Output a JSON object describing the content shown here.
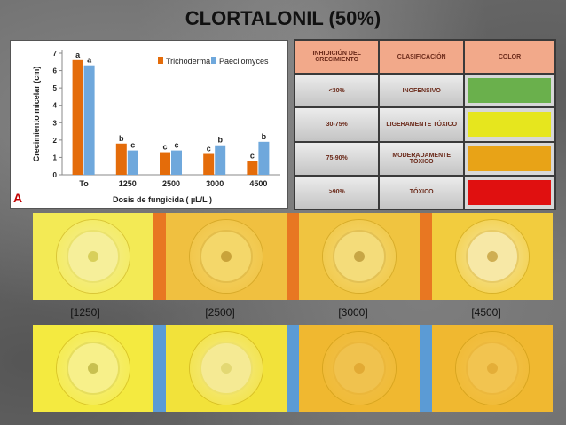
{
  "slide": {
    "title": "CLORTALONIL (50%)",
    "panel_letter": "A"
  },
  "chart_data": {
    "type": "bar",
    "title": "",
    "xlabel": "Dosis de fungicida ( µL/L )",
    "ylabel": "Crecimiento micelar (cm)",
    "categories": [
      "To",
      "1250",
      "2500",
      "3000",
      "4500"
    ],
    "ylim": [
      0,
      7
    ],
    "yticks": [
      0,
      1,
      2,
      3,
      4,
      5,
      6,
      7
    ],
    "grid": false,
    "legend_position": "top-right",
    "series": [
      {
        "name": "Trichoderma",
        "color": "#e46c0a",
        "values": [
          6.6,
          1.8,
          1.3,
          1.2,
          0.8
        ],
        "letters": [
          "a",
          "b",
          "c",
          "c",
          "c"
        ]
      },
      {
        "name": "Paecilomyces",
        "color": "#6fa8dc",
        "values": [
          6.3,
          1.4,
          1.4,
          1.7,
          1.9
        ],
        "letters": [
          "a",
          "c",
          "c",
          "b",
          "b"
        ]
      }
    ]
  },
  "classification_table": {
    "headers": [
      "INHIDICIÓN DEL CRECIMIENTO",
      "CLASIFICACIÓN",
      "COLOR"
    ],
    "rows": [
      {
        "range": "<30%",
        "class": "INOFENSIVO",
        "color": "#6ab04c"
      },
      {
        "range": "30-75%",
        "class": "LIGERAMENTE TÓXICO",
        "color": "#e6e61e"
      },
      {
        "range": "75-90%",
        "class": "MODERADAMENTE TÓXICO",
        "color": "#e8a317"
      },
      {
        "range": ">90%",
        "class": "TÓXICO",
        "color": "#e01010"
      }
    ]
  },
  "plates": {
    "concentrations": [
      "[1250]",
      "[2500]",
      "[3000]",
      "[4500]"
    ],
    "top_row_separator_color": "#e87722",
    "bottom_row_separator_color": "#5b9bd5",
    "top_row": [
      {
        "bg": "#f3ea55",
        "colony": "#f6ef9a",
        "center": "#d8cf5a"
      },
      {
        "bg": "#f0c040",
        "colony": "#f4d76a",
        "center": "#c9a33a"
      },
      {
        "bg": "#f0c440",
        "colony": "#f4dc7a",
        "center": "#c7a645"
      },
      {
        "bg": "#f2cc3e",
        "colony": "#f7e8a6",
        "center": "#cfae52"
      }
    ],
    "bottom_row": [
      {
        "bg": "#f4ea40",
        "colony": "#f7f08a",
        "center": "#c8c050"
      },
      {
        "bg": "#f2e23a",
        "colony": "#f5ea94",
        "center": "#e3d873"
      },
      {
        "bg": "#f0b830",
        "colony": "#f0c24e",
        "center": "#e2aa34"
      },
      {
        "bg": "#f0b830",
        "colony": "#f2c450",
        "center": "#e4ae38"
      }
    ]
  }
}
